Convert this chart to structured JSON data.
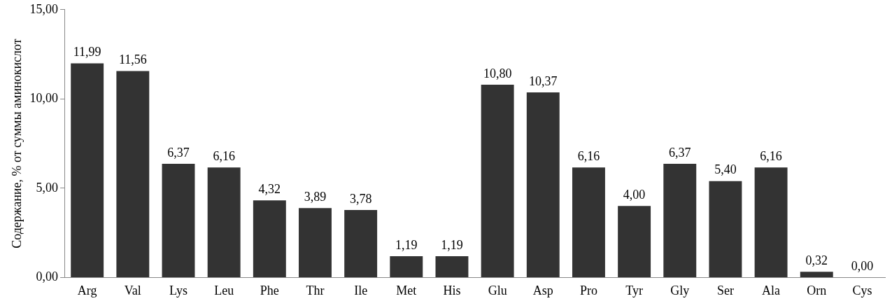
{
  "chart_data": {
    "type": "bar",
    "ylabel": "Содержание, % от суммы аминокислот",
    "categories": [
      "Arg",
      "Val",
      "Lys",
      "Leu",
      "Phe",
      "Thr",
      "Ile",
      "Met",
      "His",
      "Glu",
      "Asp",
      "Pro",
      "Tyr",
      "Gly",
      "Ser",
      "Ala",
      "Orn",
      "Cys"
    ],
    "values": [
      11.99,
      11.56,
      6.37,
      6.16,
      4.32,
      3.89,
      3.78,
      1.19,
      1.19,
      10.8,
      10.37,
      6.16,
      4.0,
      6.37,
      5.4,
      6.16,
      0.32,
      0.0
    ],
    "value_labels": [
      "11,99",
      "11,56",
      "6,37",
      "6,16",
      "4,32",
      "3,89",
      "3,78",
      "1,19",
      "1,19",
      "10,80",
      "10,37",
      "6,16",
      "4,00",
      "6,37",
      "5,40",
      "6,16",
      "0,32",
      "0,00"
    ],
    "color": "#333333",
    "ylim": [
      0,
      15
    ],
    "yticks": [
      {
        "value": 0,
        "label": "0,00"
      },
      {
        "value": 5,
        "label": "5,00"
      },
      {
        "value": 10,
        "label": "10,00"
      },
      {
        "value": 15,
        "label": "15,00"
      }
    ],
    "grid": false,
    "legend": false
  }
}
